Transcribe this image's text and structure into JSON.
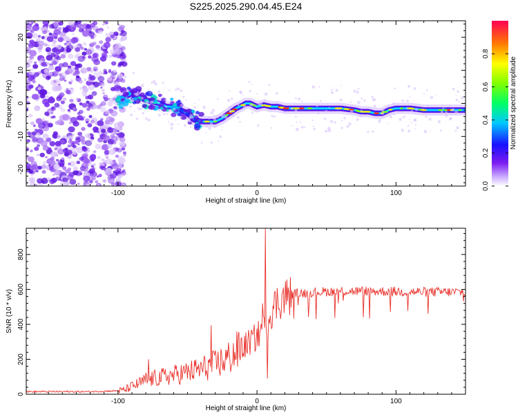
{
  "title": "S225.2025.290.04.45.E24",
  "colors": {
    "snr_line": "#e8302a",
    "frame": "#000000",
    "background": "#ffffff"
  },
  "chart_data": [
    {
      "type": "heatmap",
      "name": "spectrogram",
      "xlabel": "Height of straight line (km)",
      "ylabel": "Frequency (Hz)",
      "xlim": [
        -166,
        150
      ],
      "ylim": [
        -25,
        25
      ],
      "x_ticks": [
        -100,
        0,
        100
      ],
      "y_ticks": [
        -20,
        -10,
        0,
        10,
        20
      ],
      "ridge_trace": {
        "x": [
          -100,
          -95,
          -90,
          -85,
          -80,
          -75,
          -70,
          -65,
          -60,
          -55,
          -50,
          -45,
          -40,
          -35,
          -30,
          -25,
          -20,
          -15,
          -10,
          -8,
          -5,
          0,
          5,
          10,
          15,
          20,
          30,
          40,
          50,
          60,
          70,
          75,
          80,
          85,
          90,
          95,
          100,
          105,
          110,
          120,
          130,
          140,
          150
        ],
        "freq": [
          1,
          2,
          3,
          2,
          1,
          0.5,
          0,
          -1,
          -1,
          -2,
          -3,
          -5,
          -5.5,
          -5.5,
          -5.5,
          -4.5,
          -3,
          -1.5,
          -0.5,
          0,
          0,
          -1,
          -0.5,
          -1,
          -1,
          -1.5,
          -1.5,
          -1.5,
          -1.5,
          -1.5,
          -2,
          -2.5,
          -2.5,
          -3,
          -3,
          -2,
          -1.5,
          -1.5,
          -1.5,
          -2,
          -2,
          -2,
          -2
        ]
      },
      "noise_region_x": [
        -166,
        -95
      ]
    },
    {
      "type": "colorbar",
      "label": "Normalized spectral amplitude",
      "range": [
        0,
        1
      ],
      "ticks": [
        "0.0",
        "0.2",
        "0.4",
        "0.6",
        "0.8"
      ]
    },
    {
      "type": "line",
      "name": "snr",
      "xlabel": "Height of straight line (km)",
      "ylabel": "SNR (10 * v/v)",
      "xlim": [
        -166,
        150
      ],
      "ylim": [
        0,
        950
      ],
      "x_ticks": [
        -100,
        0,
        100
      ],
      "y_ticks": [
        0,
        200,
        400,
        600,
        800
      ],
      "trend": {
        "x": [
          -166,
          -120,
          -100,
          -95,
          -90,
          -85,
          -80,
          -70,
          -60,
          -50,
          -40,
          -30,
          -20,
          -15,
          -10,
          -5,
          0,
          3,
          5,
          7,
          9,
          10,
          12,
          15,
          20,
          25,
          30,
          40,
          60,
          80,
          100,
          120,
          140,
          150
        ],
        "y": [
          15,
          15,
          20,
          25,
          45,
          60,
          80,
          95,
          110,
          125,
          145,
          170,
          210,
          240,
          270,
          300,
          330,
          360,
          380,
          420,
          450,
          470,
          500,
          530,
          555,
          570,
          578,
          585,
          590,
          590,
          588,
          585,
          585,
          585
        ]
      },
      "spikes": [
        {
          "x": 6,
          "y": 950
        },
        {
          "x": 7.5,
          "y": 90
        },
        {
          "x": 4,
          "y": 520
        },
        {
          "x": -33,
          "y": 395
        },
        {
          "x": -78,
          "y": 200
        }
      ]
    }
  ]
}
